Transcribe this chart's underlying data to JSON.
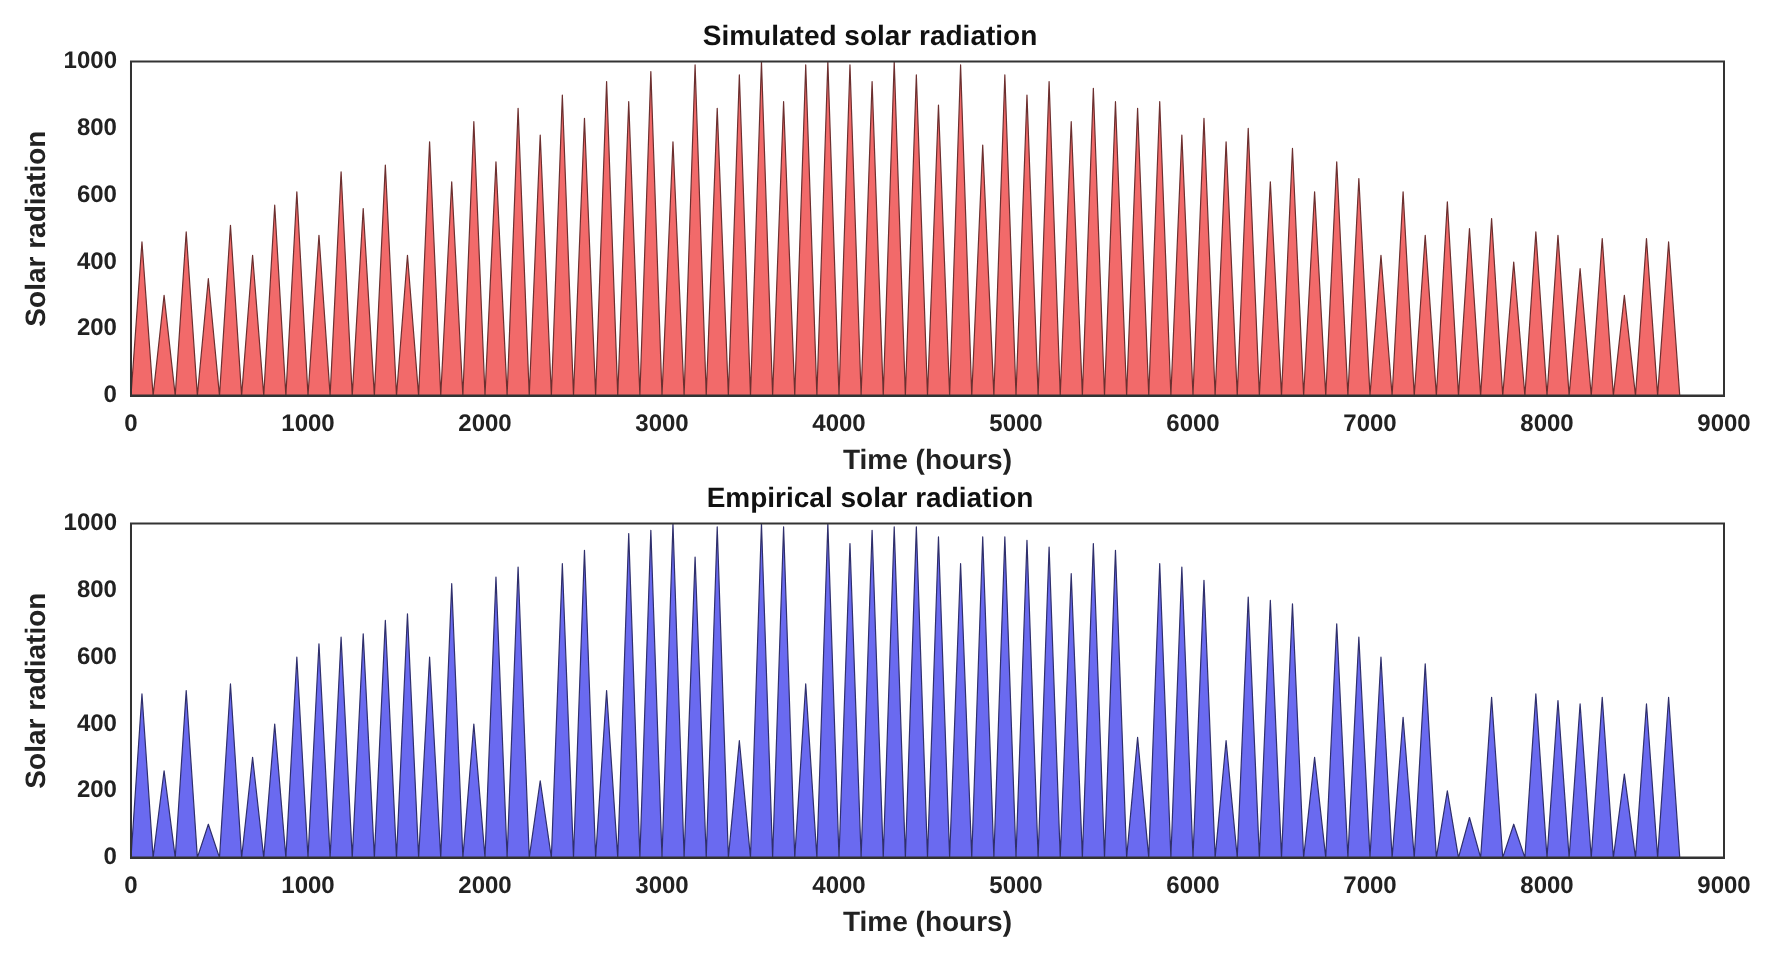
{
  "chart_data": [
    {
      "type": "area",
      "title": "Simulated solar radiation",
      "xlabel": "Time (hours)",
      "ylabel": "Solar radiation",
      "xlim": [
        0,
        9000
      ],
      "xticks": [
        0,
        1000,
        2000,
        3000,
        4000,
        5000,
        6000,
        7000,
        8000,
        9000
      ],
      "ylim": [
        0,
        1000
      ],
      "yticks": [
        0,
        200,
        400,
        600,
        800,
        1000
      ],
      "grid": false,
      "legend": false,
      "x": [
        0,
        62,
        125,
        187,
        250,
        312,
        375,
        437,
        500,
        562,
        625,
        687,
        750,
        812,
        875,
        937,
        1000,
        1062,
        1125,
        1187,
        1250,
        1312,
        1375,
        1437,
        1500,
        1562,
        1625,
        1687,
        1750,
        1812,
        1875,
        1937,
        2000,
        2062,
        2125,
        2187,
        2250,
        2312,
        2375,
        2437,
        2500,
        2562,
        2625,
        2687,
        2750,
        2812,
        2875,
        2937,
        3000,
        3062,
        3125,
        3187,
        3250,
        3312,
        3375,
        3437,
        3500,
        3562,
        3625,
        3687,
        3750,
        3812,
        3875,
        3937,
        4000,
        4062,
        4125,
        4187,
        4250,
        4312,
        4375,
        4437,
        4500,
        4562,
        4625,
        4687,
        4750,
        4812,
        4875,
        4937,
        5000,
        5062,
        5125,
        5187,
        5250,
        5312,
        5375,
        5437,
        5500,
        5562,
        5625,
        5687,
        5750,
        5812,
        5875,
        5937,
        6000,
        6062,
        6125,
        6187,
        6250,
        6312,
        6375,
        6437,
        6500,
        6562,
        6625,
        6687,
        6750,
        6812,
        6875,
        6937,
        7000,
        7062,
        7125,
        7187,
        7250,
        7312,
        7375,
        7437,
        7500,
        7562,
        7625,
        7687,
        7750,
        7812,
        7875,
        7937,
        8000,
        8062,
        8125,
        8187,
        8250,
        8312,
        8375,
        8437,
        8500,
        8562,
        8625,
        8687,
        8750
      ],
      "series": [
        {
          "color": "#f26a6a",
          "values": [
            0,
            460,
            0,
            300,
            0,
            490,
            0,
            350,
            0,
            510,
            0,
            420,
            0,
            570,
            0,
            610,
            0,
            480,
            0,
            670,
            0,
            560,
            0,
            690,
            0,
            420,
            0,
            760,
            0,
            640,
            0,
            820,
            0,
            700,
            0,
            860,
            0,
            780,
            0,
            900,
            0,
            830,
            0,
            940,
            0,
            880,
            0,
            970,
            0,
            760,
            0,
            990,
            0,
            860,
            0,
            960,
            0,
            1000,
            0,
            880,
            0,
            990,
            0,
            1000,
            0,
            990,
            0,
            940,
            0,
            1000,
            0,
            960,
            0,
            870,
            0,
            990,
            0,
            750,
            0,
            960,
            0,
            900,
            0,
            940,
            0,
            820,
            0,
            920,
            0,
            880,
            0,
            860,
            0,
            880,
            0,
            780,
            0,
            830,
            0,
            760,
            0,
            800,
            0,
            640,
            0,
            740,
            0,
            610,
            0,
            700,
            0,
            650,
            0,
            420,
            0,
            610,
            0,
            480,
            0,
            580,
            0,
            500,
            0,
            530,
            0,
            400,
            0,
            490,
            0,
            480,
            0,
            380,
            0,
            470,
            0,
            300,
            0,
            470,
            0,
            460,
            0
          ]
        }
      ]
    },
    {
      "type": "area",
      "title": "Empirical solar radiation",
      "xlabel": "Time (hours)",
      "ylabel": "Solar radiation",
      "xlim": [
        0,
        9000
      ],
      "xticks": [
        0,
        1000,
        2000,
        3000,
        4000,
        5000,
        6000,
        7000,
        8000,
        9000
      ],
      "ylim": [
        0,
        1000
      ],
      "yticks": [
        0,
        200,
        400,
        600,
        800,
        1000
      ],
      "grid": false,
      "legend": false,
      "x": [
        0,
        62,
        125,
        187,
        250,
        312,
        375,
        437,
        500,
        562,
        625,
        687,
        750,
        812,
        875,
        937,
        1000,
        1062,
        1125,
        1187,
        1250,
        1312,
        1375,
        1437,
        1500,
        1562,
        1625,
        1687,
        1750,
        1812,
        1875,
        1937,
        2000,
        2062,
        2125,
        2187,
        2250,
        2312,
        2375,
        2437,
        2500,
        2562,
        2625,
        2687,
        2750,
        2812,
        2875,
        2937,
        3000,
        3062,
        3125,
        3187,
        3250,
        3312,
        3375,
        3437,
        3500,
        3562,
        3625,
        3687,
        3750,
        3812,
        3875,
        3937,
        4000,
        4062,
        4125,
        4187,
        4250,
        4312,
        4375,
        4437,
        4500,
        4562,
        4625,
        4687,
        4750,
        4812,
        4875,
        4937,
        5000,
        5062,
        5125,
        5187,
        5250,
        5312,
        5375,
        5437,
        5500,
        5562,
        5625,
        5687,
        5750,
        5812,
        5875,
        5937,
        6000,
        6062,
        6125,
        6187,
        6250,
        6312,
        6375,
        6437,
        6500,
        6562,
        6625,
        6687,
        6750,
        6812,
        6875,
        6937,
        7000,
        7062,
        7125,
        7187,
        7250,
        7312,
        7375,
        7437,
        7500,
        7562,
        7625,
        7687,
        7750,
        7812,
        7875,
        7937,
        8000,
        8062,
        8125,
        8187,
        8250,
        8312,
        8375,
        8437,
        8500,
        8562,
        8625,
        8687,
        8750
      ],
      "series": [
        {
          "color": "#6a6af0",
          "values": [
            0,
            490,
            0,
            260,
            0,
            500,
            0,
            100,
            0,
            520,
            0,
            300,
            0,
            400,
            0,
            600,
            0,
            640,
            0,
            660,
            0,
            670,
            0,
            710,
            0,
            730,
            0,
            600,
            0,
            820,
            0,
            400,
            0,
            840,
            0,
            870,
            0,
            230,
            0,
            880,
            0,
            920,
            0,
            500,
            0,
            970,
            0,
            980,
            0,
            1000,
            0,
            900,
            0,
            990,
            0,
            350,
            0,
            1000,
            0,
            990,
            0,
            520,
            0,
            1000,
            0,
            940,
            0,
            980,
            0,
            990,
            0,
            990,
            0,
            960,
            0,
            880,
            0,
            960,
            0,
            960,
            0,
            950,
            0,
            930,
            0,
            850,
            0,
            940,
            0,
            920,
            0,
            360,
            0,
            880,
            0,
            870,
            0,
            830,
            0,
            350,
            0,
            780,
            0,
            770,
            0,
            760,
            0,
            300,
            0,
            700,
            0,
            660,
            0,
            600,
            0,
            420,
            0,
            580,
            0,
            200,
            0,
            120,
            0,
            480,
            0,
            100,
            0,
            490,
            0,
            470,
            0,
            460,
            0,
            480,
            0,
            250,
            0,
            460,
            0,
            480,
            0
          ]
        }
      ]
    }
  ]
}
